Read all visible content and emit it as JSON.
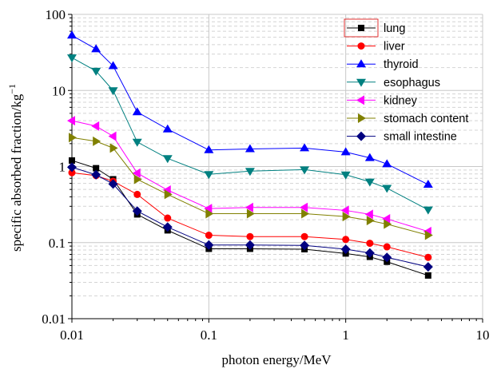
{
  "chart_data": {
    "type": "line",
    "title": "",
    "xlabel": "photon energy/MeV",
    "ylabel": "specific absorbed fraction/kg",
    "ylabel_exponent": "−1",
    "x_scale": "log",
    "y_scale": "log",
    "xlim": [
      0.01,
      10
    ],
    "ylim": [
      0.01,
      100
    ],
    "x_ticks": [
      "0.01",
      "0.1",
      "1",
      "10"
    ],
    "y_ticks": [
      "0.01",
      "0.1",
      "1",
      "10",
      "100"
    ],
    "grid": true,
    "legend_position": "top-right",
    "x": [
      0.01,
      0.015,
      0.02,
      0.03,
      0.05,
      0.1,
      0.2,
      0.5,
      1,
      1.5,
      2,
      4
    ],
    "series": [
      {
        "name": "lung",
        "color": "#000000",
        "marker": "square",
        "values": [
          1.2,
          0.95,
          0.68,
          0.235,
          0.145,
          0.083,
          0.083,
          0.082,
          0.072,
          0.065,
          0.056,
          0.037
        ]
      },
      {
        "name": "liver",
        "color": "#ff0000",
        "marker": "circle",
        "values": [
          0.83,
          0.76,
          0.64,
          0.43,
          0.21,
          0.125,
          0.12,
          0.12,
          0.11,
          0.098,
          0.088,
          0.064
        ]
      },
      {
        "name": "thyroid",
        "color": "#0000ff",
        "marker": "triangle-up",
        "values": [
          53,
          35,
          21,
          5.2,
          3.1,
          1.65,
          1.7,
          1.75,
          1.55,
          1.3,
          1.08,
          0.58
        ]
      },
      {
        "name": "esophagus",
        "color": "#008080",
        "marker": "triangle-down",
        "values": [
          27,
          18,
          10,
          2.1,
          1.28,
          0.79,
          0.87,
          0.91,
          0.78,
          0.63,
          0.52,
          0.27
        ]
      },
      {
        "name": "kidney",
        "color": "#ff00ff",
        "marker": "triangle-left",
        "values": [
          4.0,
          3.4,
          2.5,
          0.82,
          0.49,
          0.28,
          0.29,
          0.29,
          0.265,
          0.235,
          0.205,
          0.14
        ]
      },
      {
        "name": "stomach content",
        "color": "#808000",
        "marker": "triangle-right",
        "values": [
          2.4,
          2.15,
          1.75,
          0.68,
          0.43,
          0.24,
          0.24,
          0.24,
          0.22,
          0.195,
          0.175,
          0.125
        ]
      },
      {
        "name": "small intestine",
        "color": "#000080",
        "marker": "diamond",
        "values": [
          0.98,
          0.78,
          0.59,
          0.26,
          0.16,
          0.093,
          0.093,
          0.092,
          0.082,
          0.073,
          0.064,
          0.048
        ]
      }
    ]
  }
}
